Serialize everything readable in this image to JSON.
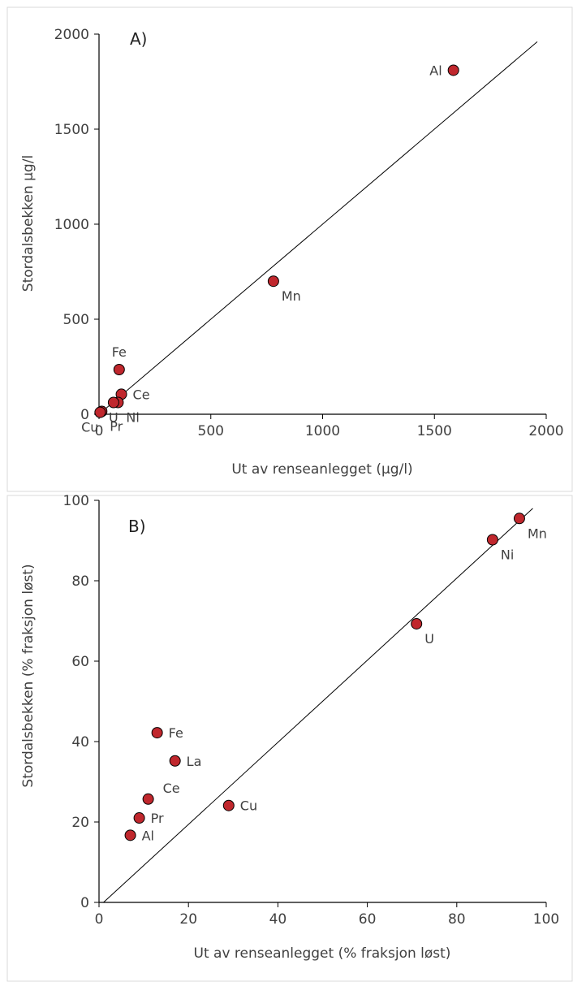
{
  "chart_data": [
    {
      "type": "scatter",
      "panel_label": "A)",
      "xlabel": "Ut av renseanlegget (µg/l)",
      "ylabel": "Stordalsbekken µg/l",
      "xlim": [
        0,
        2000
      ],
      "ylim": [
        0,
        2000
      ],
      "xticks": [
        "0",
        "500",
        "1000",
        "1500",
        "2000"
      ],
      "yticks": [
        "0",
        "500",
        "1000",
        "1500",
        "2000"
      ],
      "grid": false,
      "reference_line": {
        "from": [
          0,
          0
        ],
        "to": [
          1960,
          1960
        ]
      },
      "marker_color": "#c0272d",
      "points": [
        {
          "label": "Al",
          "x": 1585,
          "y": 1810,
          "label_pos": "left"
        },
        {
          "label": "Mn",
          "x": 780,
          "y": 700,
          "label_pos": "below-right"
        },
        {
          "label": "Fe",
          "x": 90,
          "y": 235,
          "label_pos": "above"
        },
        {
          "label": "Ce",
          "x": 100,
          "y": 105,
          "label_pos": "right"
        },
        {
          "label": "Ni",
          "x": 85,
          "y": 62,
          "label_pos": "below-right"
        },
        {
          "label": "U",
          "x": 65,
          "y": 62,
          "label_pos": "below"
        },
        {
          "label": "Pr",
          "x": 12,
          "y": 15,
          "label_pos": "below-right"
        },
        {
          "label": "Cu",
          "x": 5,
          "y": 10,
          "label_pos": "below-left"
        }
      ]
    },
    {
      "type": "scatter",
      "panel_label": "B)",
      "xlabel": "Ut av renseanlegget (% fraksjon løst)",
      "ylabel": "Stordalsbekken (% fraksjon løst)",
      "xlim": [
        0,
        100
      ],
      "ylim": [
        0,
        100
      ],
      "xticks": [
        "0",
        "20",
        "40",
        "60",
        "80",
        "100"
      ],
      "yticks": [
        "0",
        "20",
        "40",
        "60",
        "80",
        "100"
      ],
      "grid": false,
      "reference_line": {
        "from": [
          1,
          0
        ],
        "to": [
          97,
          98
        ]
      },
      "marker_color": "#c0272d",
      "points": [
        {
          "label": "Mn",
          "x": 94,
          "y": 95.5,
          "label_pos": "below-right"
        },
        {
          "label": "Ni",
          "x": 88,
          "y": 90.2,
          "label_pos": "below-right"
        },
        {
          "label": "U",
          "x": 71,
          "y": 69.3,
          "label_pos": "below-right"
        },
        {
          "label": "Fe",
          "x": 13,
          "y": 42.2,
          "label_pos": "right"
        },
        {
          "label": "La",
          "x": 17,
          "y": 35.2,
          "label_pos": "right"
        },
        {
          "label": "Ce",
          "x": 11,
          "y": 25.7,
          "label_pos": "above-right"
        },
        {
          "label": "Cu",
          "x": 29,
          "y": 24.1,
          "label_pos": "right"
        },
        {
          "label": "Pr",
          "x": 9,
          "y": 21,
          "label_pos": "right"
        },
        {
          "label": "Al",
          "x": 7,
          "y": 16.7,
          "label_pos": "right"
        }
      ]
    }
  ]
}
